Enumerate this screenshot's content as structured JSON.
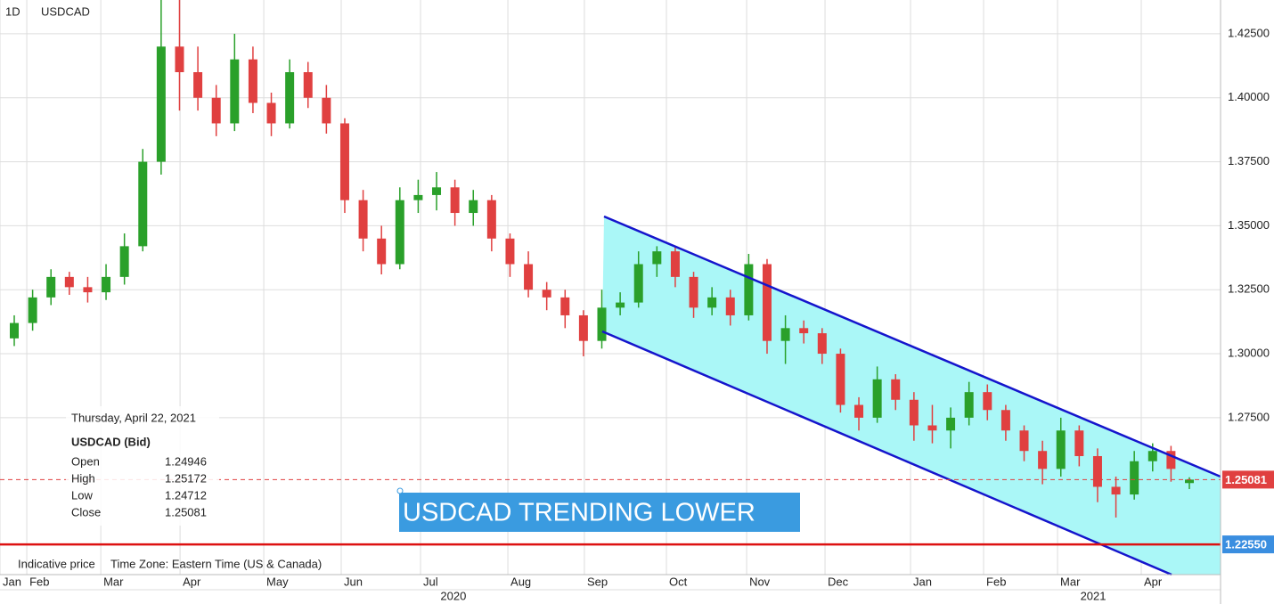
{
  "chart_data": {
    "type": "candlestick",
    "interval": "1D",
    "symbol": "USDCAD",
    "candles": [
      [
        1.306,
        1.315,
        1.303,
        1.312
      ],
      [
        1.312,
        1.325,
        1.309,
        1.322
      ],
      [
        1.322,
        1.333,
        1.319,
        1.33
      ],
      [
        1.33,
        1.332,
        1.323,
        1.326
      ],
      [
        1.326,
        1.33,
        1.32,
        1.324
      ],
      [
        1.324,
        1.335,
        1.321,
        1.33
      ],
      [
        1.33,
        1.347,
        1.327,
        1.342
      ],
      [
        1.342,
        1.38,
        1.34,
        1.375
      ],
      [
        1.375,
        1.44,
        1.37,
        1.42
      ],
      [
        1.42,
        1.445,
        1.395,
        1.41
      ],
      [
        1.41,
        1.42,
        1.395,
        1.4
      ],
      [
        1.4,
        1.405,
        1.385,
        1.39
      ],
      [
        1.39,
        1.425,
        1.387,
        1.415
      ],
      [
        1.415,
        1.42,
        1.394,
        1.398
      ],
      [
        1.398,
        1.402,
        1.385,
        1.39
      ],
      [
        1.39,
        1.415,
        1.388,
        1.41
      ],
      [
        1.41,
        1.414,
        1.396,
        1.4
      ],
      [
        1.4,
        1.405,
        1.386,
        1.39
      ],
      [
        1.39,
        1.392,
        1.355,
        1.36
      ],
      [
        1.36,
        1.364,
        1.34,
        1.345
      ],
      [
        1.345,
        1.35,
        1.331,
        1.335
      ],
      [
        1.335,
        1.365,
        1.333,
        1.36
      ],
      [
        1.36,
        1.368,
        1.355,
        1.362
      ],
      [
        1.362,
        1.371,
        1.356,
        1.365
      ],
      [
        1.365,
        1.368,
        1.35,
        1.355
      ],
      [
        1.355,
        1.364,
        1.35,
        1.36
      ],
      [
        1.36,
        1.362,
        1.34,
        1.345
      ],
      [
        1.345,
        1.347,
        1.33,
        1.335
      ],
      [
        1.335,
        1.34,
        1.322,
        1.325
      ],
      [
        1.325,
        1.328,
        1.317,
        1.322
      ],
      [
        1.322,
        1.325,
        1.31,
        1.315
      ],
      [
        1.315,
        1.317,
        1.299,
        1.305
      ],
      [
        1.305,
        1.325,
        1.302,
        1.318
      ],
      [
        1.318,
        1.324,
        1.315,
        1.32
      ],
      [
        1.32,
        1.34,
        1.318,
        1.335
      ],
      [
        1.335,
        1.342,
        1.33,
        1.34
      ],
      [
        1.34,
        1.342,
        1.326,
        1.33
      ],
      [
        1.33,
        1.332,
        1.314,
        1.318
      ],
      [
        1.318,
        1.326,
        1.315,
        1.322
      ],
      [
        1.322,
        1.325,
        1.311,
        1.315
      ],
      [
        1.315,
        1.339,
        1.313,
        1.335
      ],
      [
        1.335,
        1.337,
        1.3,
        1.305
      ],
      [
        1.305,
        1.315,
        1.296,
        1.31
      ],
      [
        1.31,
        1.313,
        1.304,
        1.308
      ],
      [
        1.308,
        1.31,
        1.296,
        1.3
      ],
      [
        1.3,
        1.302,
        1.277,
        1.28
      ],
      [
        1.28,
        1.283,
        1.27,
        1.275
      ],
      [
        1.275,
        1.295,
        1.273,
        1.29
      ],
      [
        1.29,
        1.292,
        1.278,
        1.282
      ],
      [
        1.282,
        1.285,
        1.266,
        1.272
      ],
      [
        1.272,
        1.28,
        1.265,
        1.27
      ],
      [
        1.27,
        1.279,
        1.263,
        1.275
      ],
      [
        1.275,
        1.289,
        1.272,
        1.285
      ],
      [
        1.285,
        1.288,
        1.274,
        1.278
      ],
      [
        1.278,
        1.28,
        1.266,
        1.27
      ],
      [
        1.27,
        1.272,
        1.258,
        1.262
      ],
      [
        1.262,
        1.266,
        1.249,
        1.255
      ],
      [
        1.255,
        1.275,
        1.252,
        1.27
      ],
      [
        1.27,
        1.272,
        1.256,
        1.26
      ],
      [
        1.26,
        1.263,
        1.242,
        1.248
      ],
      [
        1.248,
        1.252,
        1.236,
        1.245
      ],
      [
        1.245,
        1.262,
        1.243,
        1.258
      ],
      [
        1.258,
        1.265,
        1.254,
        1.262
      ],
      [
        1.262,
        1.264,
        1.25,
        1.255
      ],
      [
        1.24946,
        1.25172,
        1.24712,
        1.25081
      ]
    ],
    "up_color": "#2aa02a",
    "down_color": "#e04040",
    "ylim": [
      1.2137,
      1.4382
    ],
    "yticks": [
      {
        "value": 1.425,
        "label": "1.42500"
      },
      {
        "value": 1.4,
        "label": "1.40000"
      },
      {
        "value": 1.375,
        "label": "1.37500"
      },
      {
        "value": 1.35,
        "label": "1.35000"
      },
      {
        "value": 1.325,
        "label": "1.32500"
      },
      {
        "value": 1.3,
        "label": "1.30000"
      },
      {
        "value": 1.275,
        "label": "1.27500"
      }
    ],
    "xlim": [
      0,
      66.5
    ],
    "xticks": [
      {
        "value": 0,
        "label": "Jan"
      },
      {
        "value": 1.46,
        "label": "Feb"
      },
      {
        "value": 5.49,
        "label": "Mar"
      },
      {
        "value": 9.81,
        "label": "Apr"
      },
      {
        "value": 14.37,
        "label": "May"
      },
      {
        "value": 18.59,
        "label": "Jun"
      },
      {
        "value": 22.91,
        "label": "Jul"
      },
      {
        "value": 27.67,
        "label": "Aug"
      },
      {
        "value": 31.84,
        "label": "Sep"
      },
      {
        "value": 36.31,
        "label": "Oct"
      },
      {
        "value": 40.68,
        "label": "Nov"
      },
      {
        "value": 44.95,
        "label": "Dec"
      },
      {
        "value": 49.61,
        "label": "Jan"
      },
      {
        "value": 53.59,
        "label": "Feb"
      },
      {
        "value": 57.62,
        "label": "Mar"
      },
      {
        "value": 62.18,
        "label": "Apr"
      }
    ],
    "year_ticks": [
      {
        "value": 24.7,
        "label": "2020"
      },
      {
        "value": 59.56,
        "label": "2021"
      }
    ],
    "price_lines": [
      {
        "value": 1.25081,
        "label": "1.25081",
        "color": "#e04040",
        "style": "dashed",
        "box": "#e04040"
      },
      {
        "value": 1.2255,
        "label": "1.22550",
        "color": "#dd1111",
        "style": "solid",
        "box": "#3a8ee0"
      }
    ],
    "annotation": "USDCAD TRENDING LOWER",
    "info": {
      "date": "Thursday, April 22, 2021",
      "title": "USDCAD (Bid)",
      "rows": [
        [
          "Open",
          "1.24946"
        ],
        [
          "High",
          "1.25172"
        ],
        [
          "Low",
          "1.24712"
        ],
        [
          "Close",
          "1.25081"
        ]
      ]
    },
    "footer": [
      "Indicative price",
      "Time Zone: Eastern Time (US & Canada)"
    ]
  }
}
